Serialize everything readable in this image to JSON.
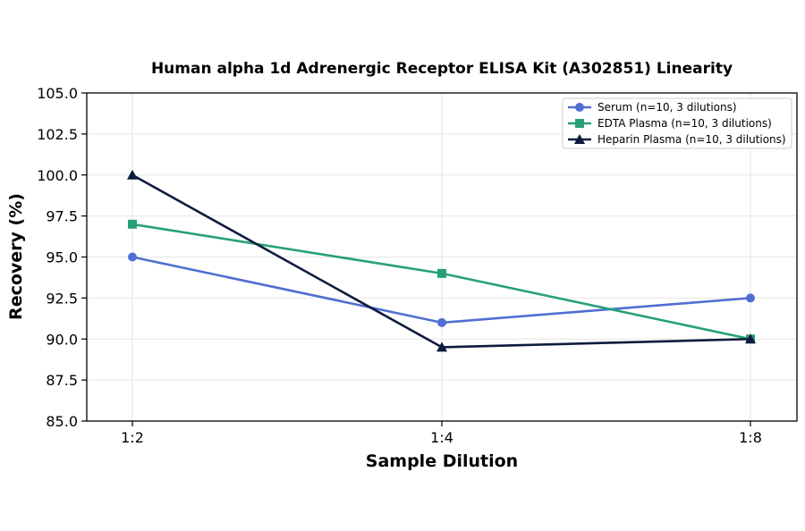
{
  "chart_data": {
    "type": "line",
    "title": "Human alpha 1d Adrenergic Receptor ELISA Kit (A302851) Linearity",
    "xlabel": "Sample Dilution",
    "ylabel": "Recovery (%)",
    "categories": [
      "1:2",
      "1:4",
      "1:8"
    ],
    "ylim": [
      85.0,
      105.0
    ],
    "yticks": [
      "85.0",
      "87.5",
      "90.0",
      "92.5",
      "95.0",
      "97.5",
      "100.0",
      "102.5",
      "105.0"
    ],
    "grid": true,
    "legend_position": "top-right",
    "series": [
      {
        "name": "Serum (n=10, 3 dilutions)",
        "values": [
          95.0,
          91.0,
          92.5
        ],
        "color": "#4f6fd1",
        "marker": "circle"
      },
      {
        "name": "EDTA Plasma (n=10, 3 dilutions)",
        "values": [
          97.0,
          94.0,
          90.0
        ],
        "color": "#27a07a",
        "marker": "square"
      },
      {
        "name": "Heparin Plasma (n=10, 3 dilutions)",
        "values": [
          100.0,
          89.5,
          90.0
        ],
        "color": "#0d1b3e",
        "marker": "triangle"
      }
    ]
  }
}
